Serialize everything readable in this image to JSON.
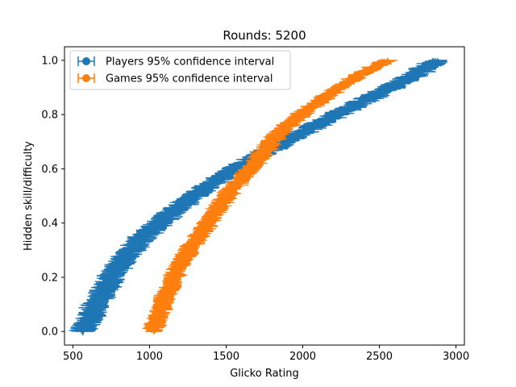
{
  "chart_data": {
    "type": "scatter",
    "title": "Rounds: 5200",
    "xlabel": "Glicko Rating",
    "ylabel": "Hidden skill/difficulty",
    "xlim": [
      445,
      3055
    ],
    "ylim": [
      -0.05,
      1.05
    ],
    "xticks": [
      500,
      1000,
      1500,
      2000,
      2500,
      3000
    ],
    "yticks": [
      0.0,
      0.2,
      0.4,
      0.6,
      0.8,
      1.0
    ],
    "xtick_labels": [
      "500",
      "1000",
      "1500",
      "2000",
      "2500",
      "3000"
    ],
    "ytick_labels": [
      "0.0",
      "0.2",
      "0.4",
      "0.6",
      "0.8",
      "1.0"
    ],
    "grid": false,
    "legend_placement": "upper-left",
    "series": [
      {
        "name": "Players 95% confidence interval",
        "color": "#1f77b4",
        "points": [
          [
            560,
            0.0
          ],
          [
            620,
            0.05
          ],
          [
            650,
            0.1
          ],
          [
            700,
            0.15
          ],
          [
            750,
            0.2
          ],
          [
            810,
            0.25
          ],
          [
            880,
            0.3
          ],
          [
            960,
            0.35
          ],
          [
            1060,
            0.4
          ],
          [
            1170,
            0.45
          ],
          [
            1290,
            0.5
          ],
          [
            1420,
            0.55
          ],
          [
            1560,
            0.6
          ],
          [
            1720,
            0.65
          ],
          [
            1880,
            0.7
          ],
          [
            2050,
            0.75
          ],
          [
            2220,
            0.8
          ],
          [
            2400,
            0.85
          ],
          [
            2580,
            0.9
          ],
          [
            2740,
            0.95
          ],
          [
            2870,
            1.0
          ]
        ],
        "x_err_range": [
          30,
          95
        ]
      },
      {
        "name": "Games 95% confidence interval",
        "color": "#ff7f0e",
        "points": [
          [
            1020,
            0.0
          ],
          [
            1060,
            0.05
          ],
          [
            1080,
            0.1
          ],
          [
            1120,
            0.15
          ],
          [
            1160,
            0.2
          ],
          [
            1200,
            0.25
          ],
          [
            1260,
            0.3
          ],
          [
            1320,
            0.35
          ],
          [
            1380,
            0.4
          ],
          [
            1440,
            0.45
          ],
          [
            1500,
            0.5
          ],
          [
            1580,
            0.55
          ],
          [
            1660,
            0.6
          ],
          [
            1730,
            0.65
          ],
          [
            1800,
            0.7
          ],
          [
            1880,
            0.75
          ],
          [
            1990,
            0.8
          ],
          [
            2110,
            0.85
          ],
          [
            2240,
            0.9
          ],
          [
            2380,
            0.95
          ],
          [
            2550,
            1.0
          ]
        ],
        "x_err_range": [
          25,
          70
        ]
      }
    ]
  }
}
